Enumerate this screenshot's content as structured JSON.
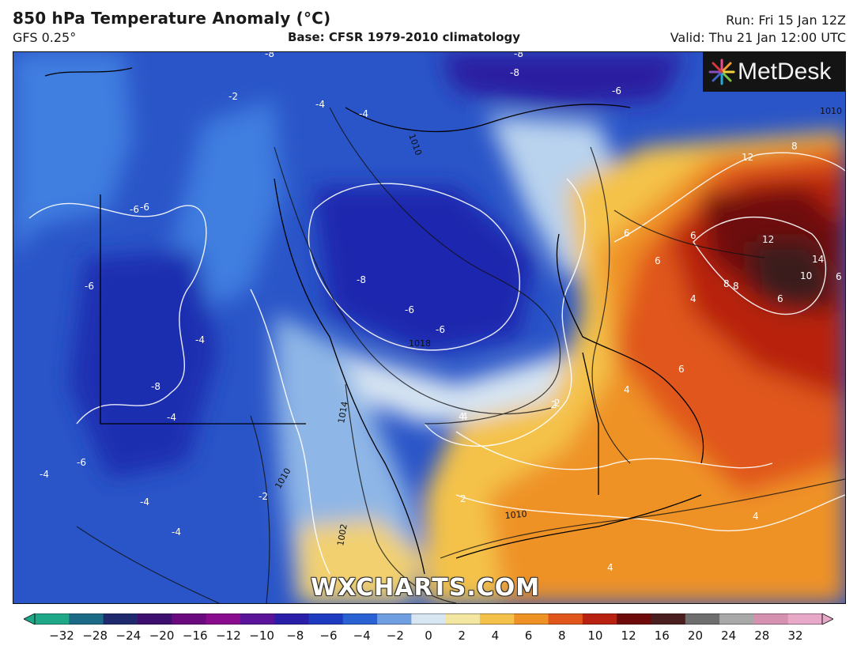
{
  "header": {
    "title": "850 hPa Temperature Anomaly (°C)",
    "subtitle": "GFS 0.25°",
    "base": "Base: CFSR 1979-2010 climatology",
    "run": "Run: Fri 15 Jan 12Z",
    "valid": "Valid: Thu 21 Jan 12:00 UTC"
  },
  "branding": {
    "logo_text": "MetDesk",
    "logo_icon": "sunburst-icon",
    "watermark": "WXCHARTS.COM"
  },
  "colorbar": {
    "ticks": [
      "−32",
      "−28",
      "−24",
      "−20",
      "−16",
      "−12",
      "−10",
      "−8",
      "−6",
      "−4",
      "−2",
      "0",
      "2",
      "4",
      "6",
      "8",
      "10",
      "12",
      "16",
      "20",
      "24",
      "28",
      "32"
    ],
    "colors": [
      "#1fa887",
      "#1b6b86",
      "#1f2a6e",
      "#3d0f6e",
      "#6a0a7e",
      "#8a0c8e",
      "#5a1499",
      "#2b1ea8",
      "#1e3bbf",
      "#2a62d4",
      "#6f9fe0",
      "#d8e6f2",
      "#f2e6a0",
      "#f4c24a",
      "#ef9226",
      "#e0561a",
      "#b8200f",
      "#6e0a0a",
      "#4a1e1e",
      "#6e6e6e",
      "#a8a8a8",
      "#d690b0",
      "#e8a8c8"
    ]
  },
  "contour_labels": {
    "temperature": [
      "-6",
      "-8",
      "-8",
      "-8",
      "-6",
      "-2",
      "-4",
      "-4",
      "-6",
      "-6",
      "-8",
      "-6",
      "-6",
      "-4",
      "-8",
      "-4",
      "-6",
      "-4",
      "-4",
      "-4",
      "-2",
      "2",
      "4",
      "2",
      "4",
      "6",
      "6",
      "6",
      "8",
      "12",
      "12",
      "14",
      "10",
      "6",
      "6",
      "8",
      "8",
      "4",
      "6",
      "2",
      "4",
      "4",
      "4"
    ],
    "pressure": [
      "1010",
      "1018",
      "1014",
      "1010",
      "1010",
      "1002",
      "1010"
    ]
  }
}
